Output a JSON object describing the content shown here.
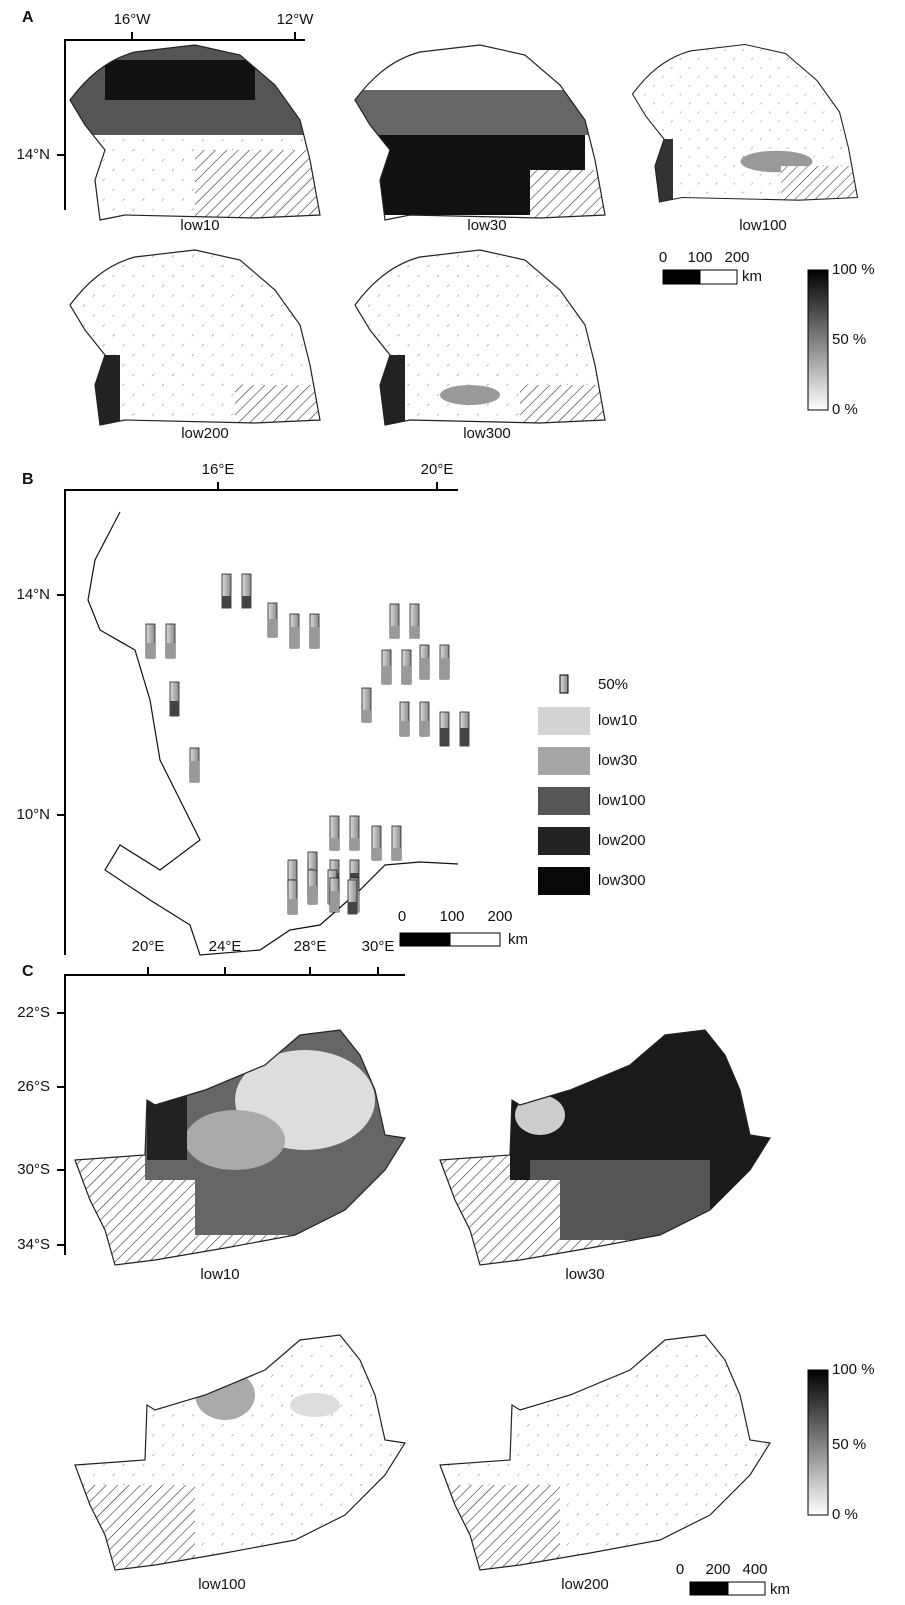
{
  "panels": [
    {
      "label": "A",
      "x_ticks": [
        "16°W",
        "12°W"
      ],
      "y_ticks": [
        "14°N"
      ],
      "maps": [
        "low10",
        "low30",
        "low100",
        "low200",
        "low300"
      ],
      "scale_ticks": [
        "0",
        "100",
        "200"
      ],
      "scale_unit": "km",
      "colorbar": [
        "100 %",
        "50 %",
        "0 %"
      ]
    },
    {
      "label": "B",
      "x_ticks": [
        "16°E",
        "20°E"
      ],
      "y_ticks": [
        "14°N",
        "10°N"
      ],
      "legend": [
        "50%",
        "low10",
        "low30",
        "low100",
        "low200",
        "low300"
      ],
      "scale_ticks": [
        "0",
        "100",
        "200"
      ],
      "scale_unit": "km"
    },
    {
      "label": "C",
      "x_ticks": [
        "20°E",
        "24°E",
        "28°E",
        "30°E"
      ],
      "y_ticks": [
        "22°S",
        "26°S",
        "30°S",
        "34°S"
      ],
      "maps": [
        "low10",
        "low30",
        "low100",
        "low200"
      ],
      "scale_ticks": [
        "0",
        "200",
        "400"
      ],
      "scale_unit": "km",
      "colorbar": [
        "100 %",
        "50 %",
        "0 %"
      ]
    }
  ]
}
